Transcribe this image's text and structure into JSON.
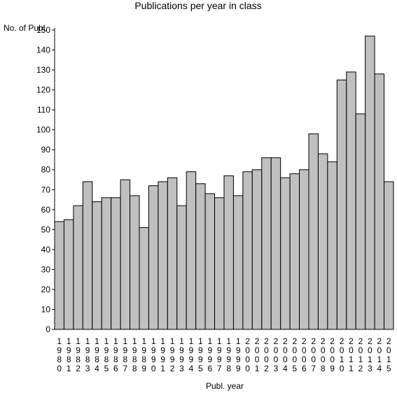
{
  "chart_data": {
    "type": "bar",
    "title": "Publications per year in class",
    "xlabel": "Publ. year",
    "ylabel": "No. of Publ.",
    "ylim": [
      0,
      150
    ],
    "ytick_step": 10,
    "grid": false,
    "legend": "none",
    "categories": [
      "1980",
      "1981",
      "1982",
      "1983",
      "1984",
      "1985",
      "1986",
      "1987",
      "1988",
      "1989",
      "1990",
      "1991",
      "1992",
      "1993",
      "1994",
      "1995",
      "1996",
      "1997",
      "1998",
      "1999",
      "2000",
      "2001",
      "2002",
      "2003",
      "2004",
      "2005",
      "2006",
      "2007",
      "2008",
      "2009",
      "2010",
      "2011",
      "2012",
      "2013",
      "2014",
      "2015"
    ],
    "values": [
      54,
      55,
      62,
      74,
      64,
      66,
      66,
      75,
      67,
      51,
      72,
      74,
      76,
      62,
      79,
      73,
      68,
      66,
      77,
      67,
      79,
      80,
      86,
      86,
      76,
      78,
      80,
      98,
      88,
      84,
      125,
      129,
      108,
      147,
      128,
      74
    ],
    "bar_fill": "#c0c0c0",
    "bar_stroke": "#000000"
  }
}
